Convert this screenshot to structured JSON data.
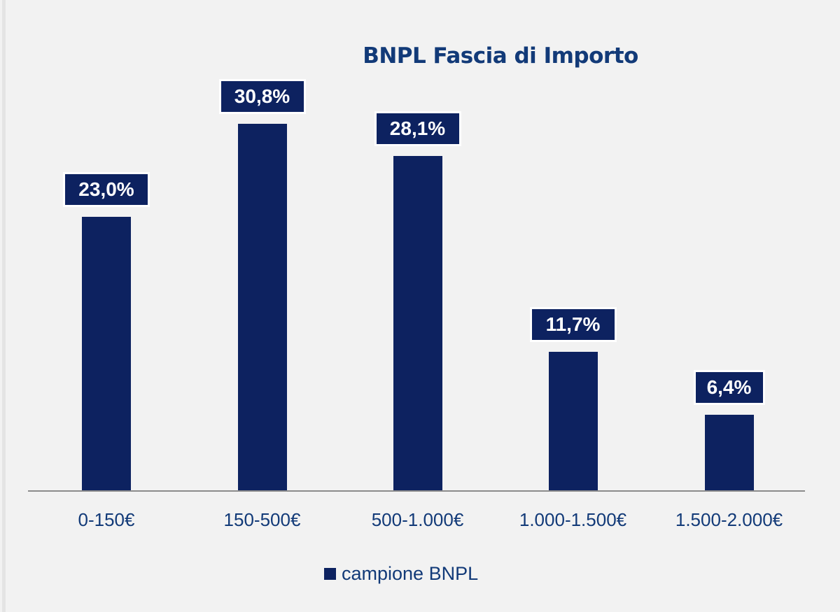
{
  "chart_data": {
    "type": "bar",
    "title": "BNPL Fascia di Importo",
    "categories": [
      "0-150€",
      "150-500€",
      "500-1.000€",
      "1.000-1.500€",
      "1.500-2.000€"
    ],
    "series": [
      {
        "name": "campione BNPL",
        "values": [
          23.0,
          30.8,
          28.1,
          11.7,
          6.4
        ],
        "color": "#0d2260"
      }
    ],
    "data_labels": [
      "23,0%",
      "30,8%",
      "28,1%",
      "11,7%",
      "6,4%"
    ],
    "xlabel": "",
    "ylabel": "",
    "ylim": [
      0,
      35
    ],
    "grid": false,
    "y_axis_visible": false,
    "legend_position": "bottom",
    "units": "%"
  },
  "colors": {
    "background": "#f2f2f2",
    "bar": "#0d2260",
    "text": "#123a78",
    "axis": "#8c8c8c"
  }
}
